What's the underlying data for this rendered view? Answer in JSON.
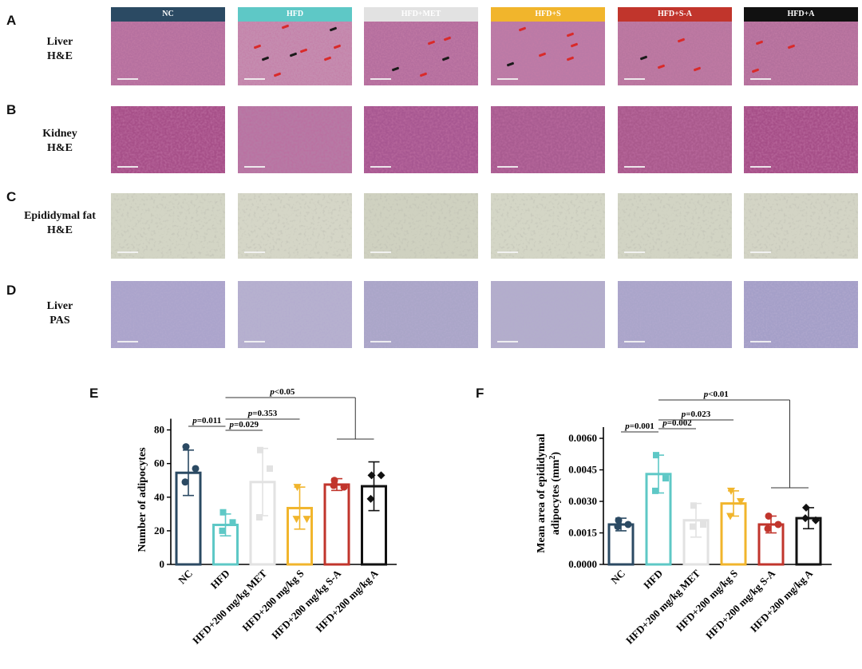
{
  "panel_labels": {
    "A": "A",
    "B": "B",
    "C": "C",
    "D": "D",
    "E": "E",
    "F": "F"
  },
  "groups": [
    {
      "name": "NC",
      "color": "#2b4a63"
    },
    {
      "name": "HFD",
      "color": "#5ec8c6"
    },
    {
      "name": "HFD+MET",
      "color": "#e2e2e2"
    },
    {
      "name": "HFD+S",
      "color": "#f1b52c"
    },
    {
      "name": "HFD+S-A",
      "color": "#c1352c"
    },
    {
      "name": "HFD+A",
      "color": "#111111"
    }
  ],
  "rows": [
    {
      "line1": "Liver",
      "line2": "H&E",
      "tissue": "liver"
    },
    {
      "line1": "Kidney",
      "line2": "H&E",
      "tissue": "kidney"
    },
    {
      "line1": "Epididymal fat",
      "line2": "H&E",
      "tissue": "fat"
    },
    {
      "line1": "Liver",
      "line2": "PAS",
      "tissue": "pas"
    }
  ],
  "chart_data": [
    {
      "type": "bar",
      "panel": "E",
      "categories": [
        "NC",
        "HFD",
        "HFD+200 mg/kg MET",
        "HFD+200 mg/kg S",
        "HFD+200 mg/kg S-A",
        "HFD+200 mg/kg A"
      ],
      "values": [
        54.5,
        23.5,
        49,
        33.5,
        47.5,
        46.5
      ],
      "errors": [
        13.5,
        6.5,
        20,
        12.5,
        3.5,
        14.5
      ],
      "points": [
        [
          70,
          57,
          49
        ],
        [
          31,
          25,
          20
        ],
        [
          68,
          57,
          28
        ],
        [
          46,
          27,
          27
        ],
        [
          50,
          46,
          47
        ],
        [
          53,
          53,
          39
        ]
      ],
      "ylabel": "Number of adipocytes",
      "ylim": [
        0,
        85
      ],
      "yticks": [
        0,
        20,
        40,
        60,
        80
      ],
      "tick_labels": [
        "0",
        "20",
        "40",
        "60",
        "80"
      ],
      "comparisons": [
        {
          "label_p": "p",
          "label_rest": "=0.011",
          "from": 0,
          "to": 1
        },
        {
          "label_p": "p",
          "label_rest": "=0.029",
          "from": 1,
          "to": 2
        },
        {
          "label_p": "p",
          "label_rest": "=0.353",
          "from": 1,
          "to": 3
        },
        {
          "label_p": "p",
          "label_rest": "<0.05",
          "from": 1,
          "to_bracket": [
            4,
            5
          ]
        }
      ]
    },
    {
      "type": "bar",
      "panel": "F",
      "categories": [
        "NC",
        "HFD",
        "HFD+200 mg/kg MET",
        "HFD+200 mg/kg S",
        "HFD+200 mg/kg S-A",
        "HFD+200 mg/kg A"
      ],
      "values": [
        0.0019,
        0.0043,
        0.0021,
        0.0029,
        0.0019,
        0.0022
      ],
      "errors": [
        0.0003,
        0.0009,
        0.0008,
        0.0006,
        0.0004,
        0.0005
      ],
      "points": [
        [
          0.0021,
          0.0019,
          0.0018
        ],
        [
          0.0052,
          0.0041,
          0.0035
        ],
        [
          0.0028,
          0.0019,
          0.0018
        ],
        [
          0.0035,
          0.003,
          0.0023
        ],
        [
          0.0023,
          0.0019,
          0.0017
        ],
        [
          0.0027,
          0.0021,
          0.0022
        ]
      ],
      "ylabel_line1": "Mean area of epididymal",
      "ylabel_line2": "adipocytes (mm",
      "ylabel_sup": "2",
      "ylabel_end": ")",
      "ylim": [
        0,
        0.0068
      ],
      "yticks": [
        0,
        0.0015,
        0.003,
        0.0045,
        0.006
      ],
      "tick_labels": [
        "0.0000",
        "0.0015",
        "0.0030",
        "0.0045",
        "0.0060"
      ],
      "comparisons": [
        {
          "label_p": "p",
          "label_rest": "=0.001",
          "from": 0,
          "to": 1
        },
        {
          "label_p": "p",
          "label_rest": "=0.002",
          "from": 1,
          "to": 2
        },
        {
          "label_p": "p",
          "label_rest": "=0.023",
          "from": 1,
          "to": 3
        },
        {
          "label_p": "p",
          "label_rest": "<0.01",
          "from": 1,
          "to_bracket": [
            4,
            5
          ]
        }
      ]
    }
  ]
}
